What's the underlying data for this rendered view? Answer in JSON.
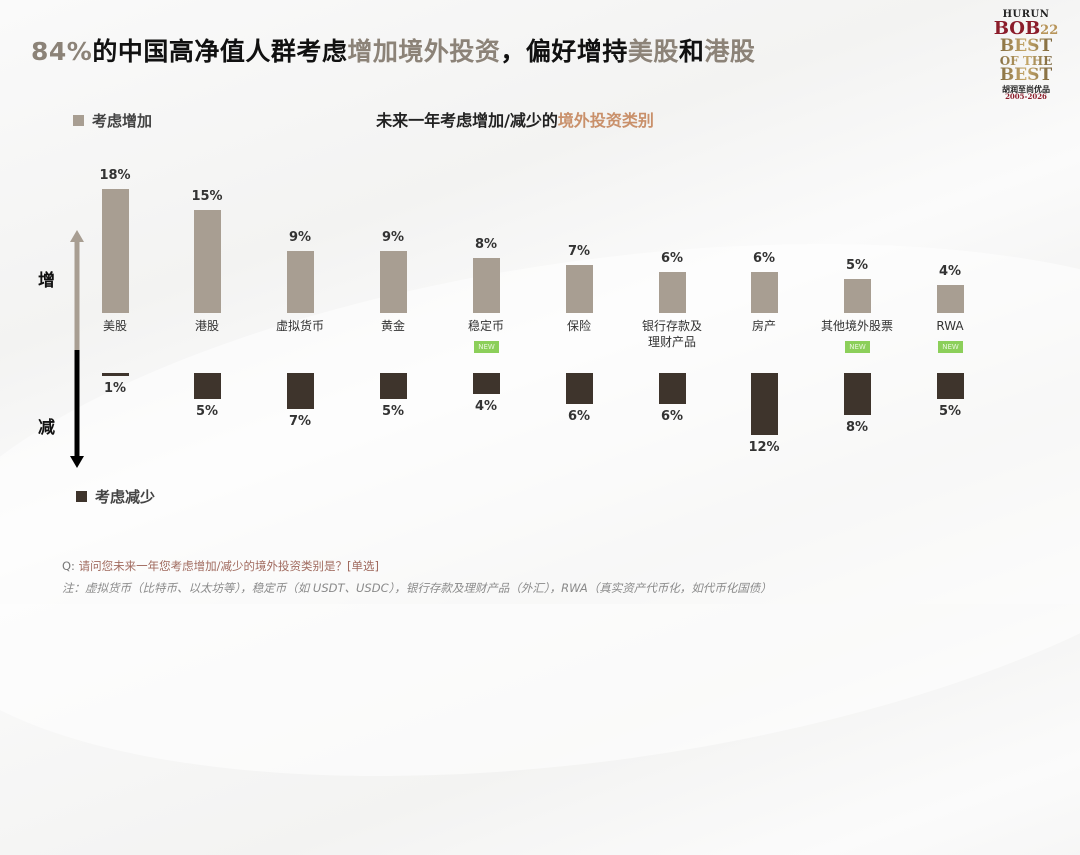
{
  "slide": {
    "title_parts": [
      {
        "text": "84%",
        "highlight": true
      },
      {
        "text": "的中国高净值人群考虑",
        "highlight": false
      },
      {
        "text": "增加境外投资",
        "highlight": true
      },
      {
        "text": "，偏好增持",
        "highlight": false
      },
      {
        "text": "美股",
        "highlight": true
      },
      {
        "text": "和",
        "highlight": false
      },
      {
        "text": "港股",
        "highlight": true
      }
    ],
    "logo": {
      "line1": "HURUN",
      "line2": "BOB",
      "line2_num": "22",
      "line3": "BEST",
      "line4": "OF THE",
      "line5": "BEST",
      "line6": "胡润至尚优品",
      "line7": "2005-2026"
    },
    "legend_increase": "考虑增加",
    "legend_decrease": "考虑减少",
    "axis_up_label": "增",
    "axis_down_label": "减",
    "chart_title_main": "未来一年考虑增加/减少的",
    "chart_title_highlight": "境外投资类别",
    "footer_q_prefix": "Q: ",
    "footer_q": "请问您未来一年您考虑增加/减少的境外投资类别是？[单选]",
    "footer_note": "注：虚拟货币（比特币、以太坊等），稳定币（如 USDT、USDC），银行存款及理财产品（外汇），RWA（真实资产代币化，如代币化国债）",
    "new_badge": "NEW"
  },
  "colors": {
    "increase": "#a89e92",
    "decrease": "#3e342c",
    "title_highlight": "#8c8378",
    "subtitle_highlight": "#c9906a",
    "new_badge": "#8ccf5a"
  },
  "chart_data": {
    "type": "bar",
    "title": "未来一年考虑增加/减少的境外投资类别",
    "xlabel": "",
    "ylabel": "",
    "categories": [
      "美股",
      "港股",
      "虚拟货币",
      "黄金",
      "稳定币",
      "保险",
      "银行存款及理财产品",
      "房产",
      "其他境外股票",
      "RWA"
    ],
    "series": [
      {
        "name": "考虑增加",
        "values": [
          18,
          15,
          9,
          9,
          8,
          7,
          6,
          6,
          5,
          4
        ]
      },
      {
        "name": "考虑减少",
        "values": [
          1,
          5,
          7,
          5,
          4,
          6,
          6,
          12,
          8,
          5
        ]
      }
    ],
    "new_categories": [
      "稳定币",
      "其他境外股票",
      "RWA"
    ],
    "unit": "%",
    "grid": false,
    "legend_position": "left"
  },
  "bars": [
    {
      "cat_l1": "美股",
      "cat_l2": "",
      "up": 18,
      "up_label": "18%",
      "down": 1,
      "down_label": "1%",
      "is_new": false
    },
    {
      "cat_l1": "港股",
      "cat_l2": "",
      "up": 15,
      "up_label": "15%",
      "down": 5,
      "down_label": "5%",
      "is_new": false
    },
    {
      "cat_l1": "虚拟货币",
      "cat_l2": "",
      "up": 9,
      "up_label": "9%",
      "down": 7,
      "down_label": "7%",
      "is_new": false
    },
    {
      "cat_l1": "黄金",
      "cat_l2": "",
      "up": 9,
      "up_label": "9%",
      "down": 5,
      "down_label": "5%",
      "is_new": false
    },
    {
      "cat_l1": "稳定币",
      "cat_l2": "",
      "up": 8,
      "up_label": "8%",
      "down": 4,
      "down_label": "4%",
      "is_new": true
    },
    {
      "cat_l1": "保险",
      "cat_l2": "",
      "up": 7,
      "up_label": "7%",
      "down": 6,
      "down_label": "6%",
      "is_new": false
    },
    {
      "cat_l1": "银行存款及",
      "cat_l2": "理财产品",
      "up": 6,
      "up_label": "6%",
      "down": 6,
      "down_label": "6%",
      "is_new": false
    },
    {
      "cat_l1": "房产",
      "cat_l2": "",
      "up": 6,
      "up_label": "6%",
      "down": 12,
      "down_label": "12%",
      "is_new": false
    },
    {
      "cat_l1": "其他境外股票",
      "cat_l2": "",
      "up": 5,
      "up_label": "5%",
      "down": 8,
      "down_label": "8%",
      "is_new": true
    },
    {
      "cat_l1": "RWA",
      "cat_l2": "",
      "up": 4,
      "up_label": "4%",
      "down": 5,
      "down_label": "5%",
      "is_new": true
    }
  ]
}
